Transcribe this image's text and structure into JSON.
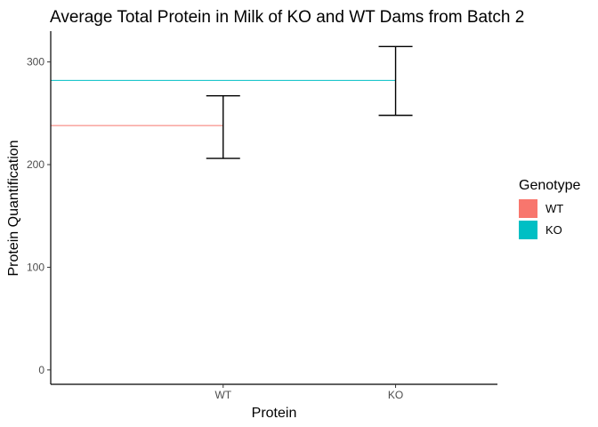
{
  "chart_data": {
    "type": "bar",
    "title": "Average Total Protein in Milk of KO and WT Dams from Batch 2",
    "xlabel": "Protein",
    "ylabel": "Protein Quantification",
    "categories": [
      "WT",
      "KO"
    ],
    "values": [
      238,
      282
    ],
    "error_low": [
      206,
      248
    ],
    "error_high": [
      267,
      315
    ],
    "ylim": [
      -14,
      330
    ],
    "yticks": [
      0,
      100,
      200,
      300
    ],
    "grid": false,
    "legend": {
      "title": "Genotype",
      "position": "right",
      "entries": [
        {
          "label": "WT",
          "color": "#F8766D"
        },
        {
          "label": "KO",
          "color": "#00BFC4"
        }
      ]
    }
  }
}
